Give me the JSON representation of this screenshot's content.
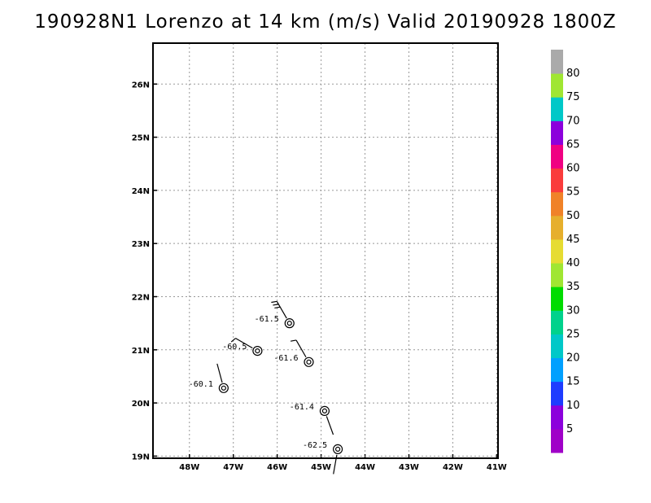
{
  "title": "190928N1 Lorenzo at 14 km (m/s) Valid 20190928 1800Z",
  "chart_data": {
    "type": "scatter",
    "title": "190928N1 Lorenzo at 14 km (m/s) Valid 20190928 1800Z",
    "xlim": [
      -48.83,
      -40.97
    ],
    "ylim": [
      18.96,
      26.77
    ],
    "grid": true,
    "x_ticks": [
      -48,
      -47,
      -46,
      -45,
      -44,
      -43,
      -42,
      -41
    ],
    "x_tick_labels": [
      "48W",
      "47W",
      "46W",
      "45W",
      "44W",
      "43W",
      "42W",
      "41W"
    ],
    "y_ticks": [
      19,
      20,
      21,
      22,
      23,
      24,
      25,
      26
    ],
    "y_tick_labels": [
      "19N",
      "20N",
      "21N",
      "22N",
      "23N",
      "24N",
      "25N",
      "26N"
    ],
    "points": [
      {
        "lon": -45.72,
        "lat": 21.5,
        "label": "-61.5",
        "barb_dir": 330,
        "barb_flags": 3
      },
      {
        "lon": -46.45,
        "lat": 20.98,
        "label": "-60.5",
        "barb_dir": 300,
        "barb_flags": 1
      },
      {
        "lon": -45.28,
        "lat": 20.77,
        "label": "-61.6",
        "barb_dir": 330,
        "barb_flags": 1
      },
      {
        "lon": -47.22,
        "lat": 20.28,
        "label": "-60.1",
        "barb_dir": 345,
        "barb_flags": 0
      },
      {
        "lon": -44.92,
        "lat": 19.85,
        "label": "-61.4",
        "barb_dir": 160,
        "barb_flags": 0
      },
      {
        "lon": -44.62,
        "lat": 19.13,
        "label": "-62.5",
        "barb_dir": 190,
        "barb_flags": 0
      }
    ],
    "colorbar": {
      "ticks": [
        "5",
        "10",
        "15",
        "20",
        "25",
        "30",
        "35",
        "40",
        "45",
        "50",
        "55",
        "60",
        "65",
        "70",
        "75",
        "80"
      ],
      "colors": [
        "#a000c8",
        "#8c00dc",
        "#1e3cff",
        "#00a0ff",
        "#00c8c8",
        "#00d28c",
        "#00dc00",
        "#a0e632",
        "#e6dc32",
        "#e6af2d",
        "#f08228",
        "#fa3c3c",
        "#f00082",
        "#8c00dc",
        "#00c8c8",
        "#a0e632",
        "#aaaaaa"
      ]
    }
  }
}
